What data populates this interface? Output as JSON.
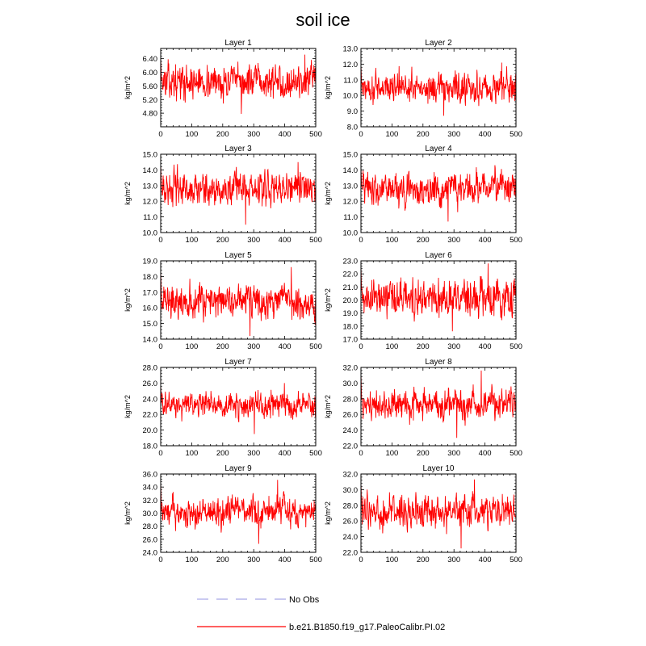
{
  "figure": {
    "title": "soil ice",
    "legend": [
      {
        "label": "No Obs",
        "color": "#a8a8e8",
        "style": "dashed"
      },
      {
        "label": "b.e21.B1850.f19_g17.PaleoCalibr.PI.02",
        "color": "#ff0000",
        "style": "solid"
      }
    ],
    "series_color": "#ff0000"
  },
  "chart_data": [
    {
      "type": "line",
      "title": "Layer 1",
      "ylabel": "kg/m^2",
      "xlim": [
        0,
        500
      ],
      "ylim": [
        4.4,
        6.7
      ],
      "xticks": [
        0,
        100,
        200,
        300,
        400,
        500
      ],
      "yticks": [
        "4.80",
        "5.20",
        "5.60",
        "6.00",
        "6.40"
      ],
      "ytick_values": [
        4.8,
        5.2,
        5.6,
        6.0,
        6.4
      ],
      "series": [
        {
          "mean": 5.72,
          "amplitude": 0.28,
          "min": 4.78,
          "max": 6.52,
          "n_points": 500
        }
      ]
    },
    {
      "type": "line",
      "title": "Layer 2",
      "ylabel": "kg/m^2",
      "xlim": [
        0,
        500
      ],
      "ylim": [
        8.0,
        13.0
      ],
      "xticks": [
        0,
        100,
        200,
        300,
        400,
        500
      ],
      "yticks": [
        "8.0",
        "9.0",
        "10.0",
        "11.0",
        "12.0",
        "13.0"
      ],
      "ytick_values": [
        8,
        9,
        10,
        11,
        12,
        13
      ],
      "series": [
        {
          "mean": 10.55,
          "amplitude": 0.55,
          "min": 8.7,
          "max": 12.1,
          "n_points": 500
        }
      ]
    },
    {
      "type": "line",
      "title": "Layer 3",
      "ylabel": "kg/m^2",
      "xlim": [
        0,
        500
      ],
      "ylim": [
        10.0,
        15.0
      ],
      "xticks": [
        0,
        100,
        200,
        300,
        400,
        500
      ],
      "yticks": [
        "10.0",
        "11.0",
        "12.0",
        "13.0",
        "14.0",
        "15.0"
      ],
      "ytick_values": [
        10,
        11,
        12,
        13,
        14,
        15
      ],
      "series": [
        {
          "mean": 12.8,
          "amplitude": 0.6,
          "min": 10.5,
          "max": 14.5,
          "n_points": 500
        }
      ]
    },
    {
      "type": "line",
      "title": "Layer 4",
      "ylabel": "kg/m^2",
      "xlim": [
        0,
        500
      ],
      "ylim": [
        10.0,
        15.0
      ],
      "xticks": [
        0,
        100,
        200,
        300,
        400,
        500
      ],
      "yticks": [
        "10.0",
        "11.0",
        "12.0",
        "13.0",
        "14.0",
        "15.0"
      ],
      "ytick_values": [
        10,
        11,
        12,
        13,
        14,
        15
      ],
      "series": [
        {
          "mean": 12.8,
          "amplitude": 0.6,
          "min": 10.7,
          "max": 14.3,
          "n_points": 500
        }
      ]
    },
    {
      "type": "line",
      "title": "Layer 5",
      "ylabel": "kg/m^2",
      "xlim": [
        0,
        500
      ],
      "ylim": [
        14.0,
        19.0
      ],
      "xticks": [
        0,
        100,
        200,
        300,
        400,
        500
      ],
      "yticks": [
        "14.0",
        "15.0",
        "16.0",
        "17.0",
        "18.0",
        "19.0"
      ],
      "ytick_values": [
        14,
        15,
        16,
        17,
        18,
        19
      ],
      "series": [
        {
          "mean": 16.5,
          "amplitude": 0.65,
          "min": 14.2,
          "max": 18.6,
          "n_points": 500
        }
      ]
    },
    {
      "type": "line",
      "title": "Layer 6",
      "ylabel": "kg/m^2",
      "xlim": [
        0,
        500
      ],
      "ylim": [
        17.0,
        23.0
      ],
      "xticks": [
        0,
        100,
        200,
        300,
        400,
        500
      ],
      "yticks": [
        "17.0",
        "18.0",
        "19.0",
        "20.0",
        "21.0",
        "22.0",
        "23.0"
      ],
      "ytick_values": [
        17,
        18,
        19,
        20,
        21,
        22,
        23
      ],
      "series": [
        {
          "mean": 20.2,
          "amplitude": 0.8,
          "min": 17.6,
          "max": 22.8,
          "n_points": 500
        }
      ]
    },
    {
      "type": "line",
      "title": "Layer 7",
      "ylabel": "kg/m^2",
      "xlim": [
        0,
        500
      ],
      "ylim": [
        18.0,
        28.0
      ],
      "xticks": [
        0,
        100,
        200,
        300,
        400,
        500
      ],
      "yticks": [
        "18.0",
        "20.0",
        "22.0",
        "24.0",
        "26.0",
        "28.0"
      ],
      "ytick_values": [
        18,
        20,
        22,
        24,
        26,
        28
      ],
      "series": [
        {
          "mean": 23.2,
          "amplitude": 0.9,
          "min": 19.5,
          "max": 26.0,
          "n_points": 500
        }
      ]
    },
    {
      "type": "line",
      "title": "Layer 8",
      "ylabel": "kg/m^2",
      "xlim": [
        0,
        500
      ],
      "ylim": [
        22.0,
        32.0
      ],
      "xticks": [
        0,
        100,
        200,
        300,
        400,
        500
      ],
      "yticks": [
        "22.0",
        "24.0",
        "26.0",
        "28.0",
        "30.0",
        "32.0"
      ],
      "ytick_values": [
        22,
        24,
        26,
        28,
        30,
        32
      ],
      "series": [
        {
          "mean": 27.3,
          "amplitude": 1.1,
          "min": 23.0,
          "max": 31.6,
          "n_points": 500
        }
      ]
    },
    {
      "type": "line",
      "title": "Layer 9",
      "ylabel": "kg/m^2",
      "xlim": [
        0,
        500
      ],
      "ylim": [
        24.0,
        36.0
      ],
      "xticks": [
        0,
        100,
        200,
        300,
        400,
        500
      ],
      "yticks": [
        "24.0",
        "26.0",
        "28.0",
        "30.0",
        "32.0",
        "34.0",
        "36.0"
      ],
      "ytick_values": [
        24,
        26,
        28,
        30,
        32,
        34,
        36
      ],
      "series": [
        {
          "mean": 30.3,
          "amplitude": 1.3,
          "min": 25.3,
          "max": 35.1,
          "n_points": 500
        }
      ]
    },
    {
      "type": "line",
      "title": "Layer 10",
      "ylabel": "kg/m^2",
      "xlim": [
        0,
        500
      ],
      "ylim": [
        22.0,
        32.0
      ],
      "xticks": [
        0,
        100,
        200,
        300,
        400,
        500
      ],
      "yticks": [
        "22.0",
        "24.0",
        "26.0",
        "28.0",
        "30.0",
        "32.0"
      ],
      "ytick_values": [
        22,
        24,
        26,
        28,
        30,
        32
      ],
      "series": [
        {
          "mean": 27.2,
          "amplitude": 1.2,
          "min": 22.5,
          "max": 31.3,
          "n_points": 500
        }
      ]
    }
  ]
}
